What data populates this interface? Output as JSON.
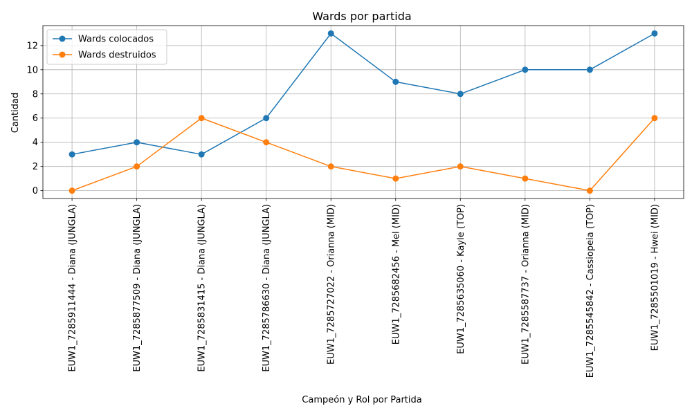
{
  "chart_data": {
    "type": "line",
    "title": "Wards por partida",
    "xlabel": "Campeón y Rol por Partida",
    "ylabel": "Cantidad",
    "categories": [
      "EUW1_7285911444 - Diana (JUNGLA)",
      "EUW1_7285877509 - Diana (JUNGLA)",
      "EUW1_7285831415 - Diana (JUNGLA)",
      "EUW1_7285786630 - Diana (JUNGLA)",
      "EUW1_7285727022 - Orianna (MID)",
      "EUW1_7285682456 - Mel (MID)",
      "EUW1_7285635060 - Kayle (TOP)",
      "EUW1_7285587737 - Orianna (MID)",
      "EUW1_7285545842 - Cassiopeia (TOP)",
      "EUW1_7285501019 - Hwei (MID)"
    ],
    "series": [
      {
        "name": "Wards colocados",
        "color": "#1f77b4",
        "values": [
          3,
          4,
          3,
          6,
          13,
          9,
          8,
          10,
          10,
          13
        ]
      },
      {
        "name": "Wards destruidos",
        "color": "#ff7f0e",
        "values": [
          0,
          2,
          6,
          4,
          2,
          1,
          2,
          1,
          0,
          6
        ]
      }
    ],
    "ylim": [
      -0.65,
      13.65
    ],
    "yticks": [
      0,
      2,
      4,
      6,
      8,
      10,
      12
    ],
    "grid": true,
    "legend": "top-left",
    "marker": "circle"
  }
}
